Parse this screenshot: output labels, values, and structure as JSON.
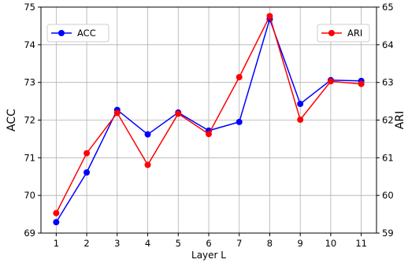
{
  "chart_data": {
    "type": "line",
    "xlabel": "Layer L",
    "ylabel_left": "ACC",
    "ylabel_right": "ARI",
    "x": [
      1,
      2,
      3,
      4,
      5,
      6,
      7,
      8,
      9,
      10,
      11
    ],
    "ylim_left": [
      69,
      75
    ],
    "ylim_right": [
      59,
      65
    ],
    "yticks_left": [
      69,
      70,
      71,
      72,
      73,
      74,
      75
    ],
    "yticks_right": [
      59,
      60,
      61,
      62,
      63,
      64,
      65
    ],
    "grid": true,
    "series": [
      {
        "name": "ACC",
        "axis": "left",
        "color": "#0000ff",
        "legend_position": "top-left",
        "values": [
          69.29,
          70.61,
          72.27,
          71.62,
          72.2,
          71.72,
          71.95,
          74.68,
          72.43,
          73.06,
          73.04
        ]
      },
      {
        "name": "ARI",
        "axis": "right",
        "color": "#ff0000",
        "legend_position": "top-right",
        "values": [
          59.53,
          61.12,
          62.19,
          60.81,
          62.17,
          61.63,
          63.14,
          64.76,
          62.01,
          63.03,
          62.96
        ]
      }
    ]
  }
}
